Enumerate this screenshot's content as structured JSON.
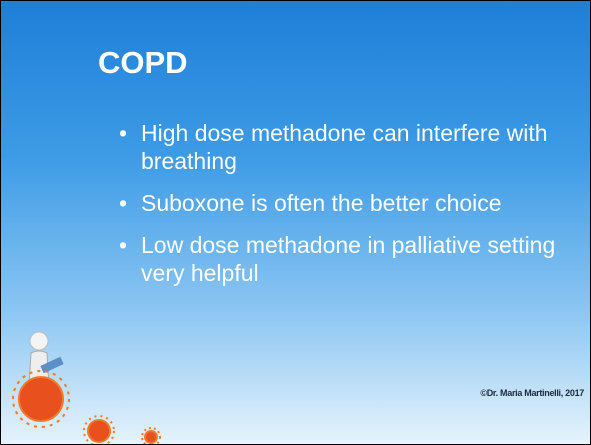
{
  "slide": {
    "title": "COPD",
    "bullets": [
      "High dose methadone can interfere with breathing",
      "Suboxone is often the better choice",
      "Low dose methadone in palliative setting very helpful"
    ],
    "footer": "©Dr. Maria Martinelli, 2017"
  }
}
